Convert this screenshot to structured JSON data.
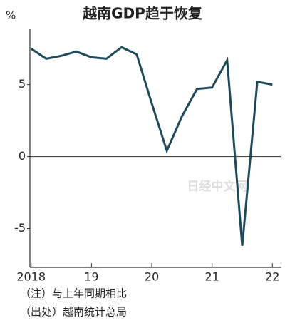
{
  "chart_data": {
    "type": "line",
    "title": "越南GDP趋于恢复",
    "y_unit": "%",
    "x": [
      2018,
      2018.25,
      2018.5,
      2018.75,
      2019,
      2019.25,
      2019.5,
      2019.75,
      2020,
      2020.25,
      2020.5,
      2020.75,
      2021,
      2021.25,
      2021.5,
      2021.75,
      2022
    ],
    "series": [
      {
        "color": "#1f4a5c",
        "values": [
          7.5,
          6.8,
          7.0,
          7.3,
          6.9,
          6.8,
          7.6,
          7.1,
          3.7,
          0.4,
          2.8,
          4.7,
          4.8,
          6.7,
          -6.2,
          5.2,
          5.0
        ]
      }
    ],
    "xlim": [
      2017.98,
      2022.15
    ],
    "xticks": [
      {
        "value": 2018,
        "label": "2018"
      },
      {
        "value": 2019,
        "label": "19"
      },
      {
        "value": 2020,
        "label": "20"
      },
      {
        "value": 2021,
        "label": "21"
      },
      {
        "value": 2022,
        "label": "22"
      }
    ],
    "ylim": [
      -7.7,
      8.9
    ],
    "yticks": [
      -5,
      0,
      5
    ],
    "watermark": "日经中文网",
    "notes": [
      "（注）与上年同期相比",
      "（出处）越南统计总局"
    ]
  }
}
